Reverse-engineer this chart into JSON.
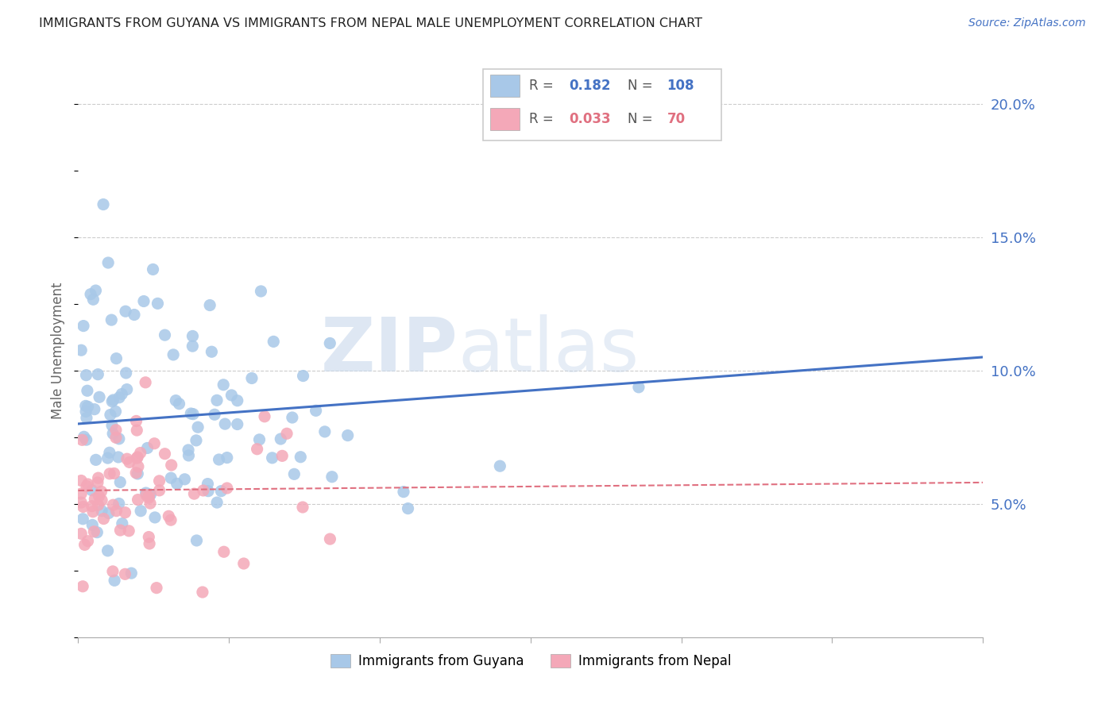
{
  "title": "IMMIGRANTS FROM GUYANA VS IMMIGRANTS FROM NEPAL MALE UNEMPLOYMENT CORRELATION CHART",
  "source": "Source: ZipAtlas.com",
  "ylabel": "Male Unemployment",
  "xlim": [
    0.0,
    0.3
  ],
  "ylim": [
    0.0,
    0.215
  ],
  "yticks": [
    0.05,
    0.1,
    0.15,
    0.2
  ],
  "ytick_labels": [
    "5.0%",
    "10.0%",
    "15.0%",
    "20.0%"
  ],
  "guyana_color": "#a8c8e8",
  "nepal_color": "#f4a8b8",
  "guyana_line_color": "#4472c4",
  "nepal_line_color": "#e07080",
  "guyana_R": 0.182,
  "guyana_N": 108,
  "nepal_R": 0.033,
  "nepal_N": 70,
  "watermark_text": "ZIPatlas",
  "background_color": "#ffffff",
  "grid_color": "#cccccc",
  "title_color": "#222222",
  "axis_label_color": "#4472c4",
  "legend_box_color": "#4472c4",
  "nepal_text_color": "#e07080"
}
